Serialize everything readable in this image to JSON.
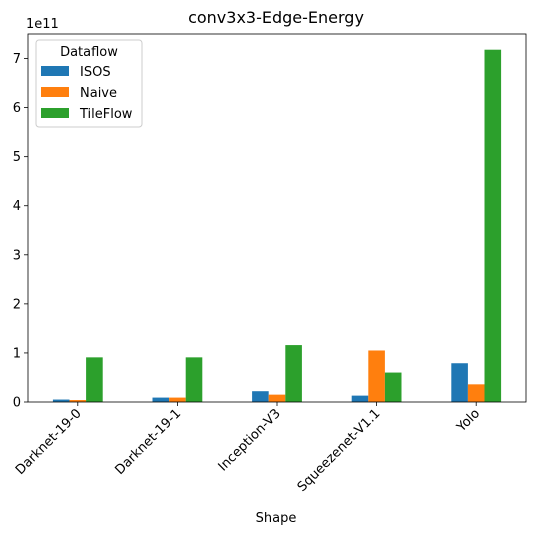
{
  "chart_data": {
    "type": "bar",
    "title": "conv3x3-Edge-Energy",
    "xlabel": "Shape",
    "ylabel": "",
    "offset_text": "1e11",
    "scale": 100000000000.0,
    "categories": [
      "Darknet-19-0",
      "Darknet-19-1",
      "Inception-V3",
      "Squeezenet-V1.1",
      "Yolo"
    ],
    "series": [
      {
        "name": "ISOS",
        "color": "#1f77b4",
        "values": [
          0.05,
          0.09,
          0.22,
          0.13,
          0.79
        ]
      },
      {
        "name": "Naive",
        "color": "#ff7f0e",
        "values": [
          0.04,
          0.09,
          0.15,
          1.05,
          0.36
        ]
      },
      {
        "name": "TileFlow",
        "color": "#2ca02c",
        "values": [
          0.91,
          0.91,
          1.16,
          0.6,
          7.18
        ]
      }
    ],
    "ylim": [
      0,
      7.5
    ],
    "yticks": [
      0,
      1,
      2,
      3,
      4,
      5,
      6,
      7
    ],
    "legend": {
      "title": "Dataflow",
      "placement": "top-left"
    },
    "grid": false
  }
}
